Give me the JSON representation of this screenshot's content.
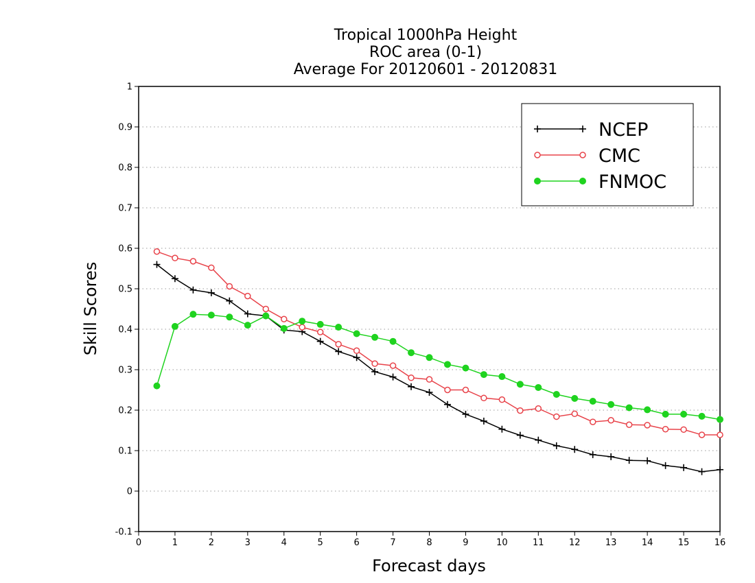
{
  "chart_data": {
    "type": "line",
    "title": [
      "Tropical 1000hPa Height",
      "ROC area (0-1)",
      "Average For 20120601 - 20120831"
    ],
    "xlabel": "Forecast days",
    "ylabel": "Skill Scores",
    "xlim": [
      0,
      16
    ],
    "ylim": [
      -0.1,
      1
    ],
    "xticks": [
      0,
      1,
      2,
      3,
      4,
      5,
      6,
      7,
      8,
      9,
      10,
      11,
      12,
      13,
      14,
      15,
      16
    ],
    "yticks": [
      -0.1,
      0,
      0.1,
      0.2,
      0.3,
      0.4,
      0.5,
      0.6,
      0.7,
      0.8,
      0.9,
      1
    ],
    "ytick_labels": [
      "-0.1",
      "0",
      "0.1",
      "0.2",
      "0.3",
      "0.4",
      "0.5",
      "0.6",
      "0.7",
      "0.8",
      "0.9",
      "1"
    ],
    "grid": "horizontal dotted",
    "legend_position": "top-right",
    "x": [
      0.5,
      1,
      1.5,
      2,
      2.5,
      3,
      3.5,
      4,
      4.5,
      5,
      5.5,
      6,
      6.5,
      7,
      7.5,
      8,
      8.5,
      9,
      9.5,
      10,
      10.5,
      11,
      11.5,
      12,
      12.5,
      13,
      13.5,
      14,
      14.5,
      15,
      15.5,
      16
    ],
    "series": [
      {
        "name": "NCEP",
        "color": "#000000",
        "marker": "plus",
        "values": [
          0.56,
          0.525,
          0.497,
          0.49,
          0.47,
          0.438,
          0.433,
          0.398,
          0.394,
          0.37,
          0.345,
          0.33,
          0.295,
          0.282,
          0.258,
          0.244,
          0.214,
          0.19,
          0.173,
          0.153,
          0.138,
          0.126,
          0.112,
          0.103,
          0.09,
          0.085,
          0.076,
          0.075,
          0.063,
          0.058,
          0.048,
          0.053
        ]
      },
      {
        "name": "CMC",
        "color": "#e8434a",
        "marker": "open-circle",
        "values": [
          0.592,
          0.576,
          0.568,
          0.552,
          0.506,
          0.482,
          0.45,
          0.425,
          0.405,
          0.393,
          0.363,
          0.347,
          0.315,
          0.31,
          0.28,
          0.276,
          0.25,
          0.25,
          0.23,
          0.226,
          0.199,
          0.204,
          0.184,
          0.191,
          0.171,
          0.175,
          0.164,
          0.163,
          0.153,
          0.152,
          0.139,
          0.139
        ]
      },
      {
        "name": "FNMOC",
        "color": "#1fd31f",
        "marker": "filled-circle",
        "values": [
          0.26,
          0.407,
          0.437,
          0.435,
          0.43,
          0.41,
          0.433,
          0.402,
          0.42,
          0.412,
          0.405,
          0.389,
          0.38,
          0.37,
          0.342,
          0.33,
          0.313,
          0.304,
          0.288,
          0.283,
          0.264,
          0.256,
          0.239,
          0.229,
          0.222,
          0.214,
          0.206,
          0.201,
          0.19,
          0.19,
          0.185,
          0.177
        ]
      }
    ]
  }
}
